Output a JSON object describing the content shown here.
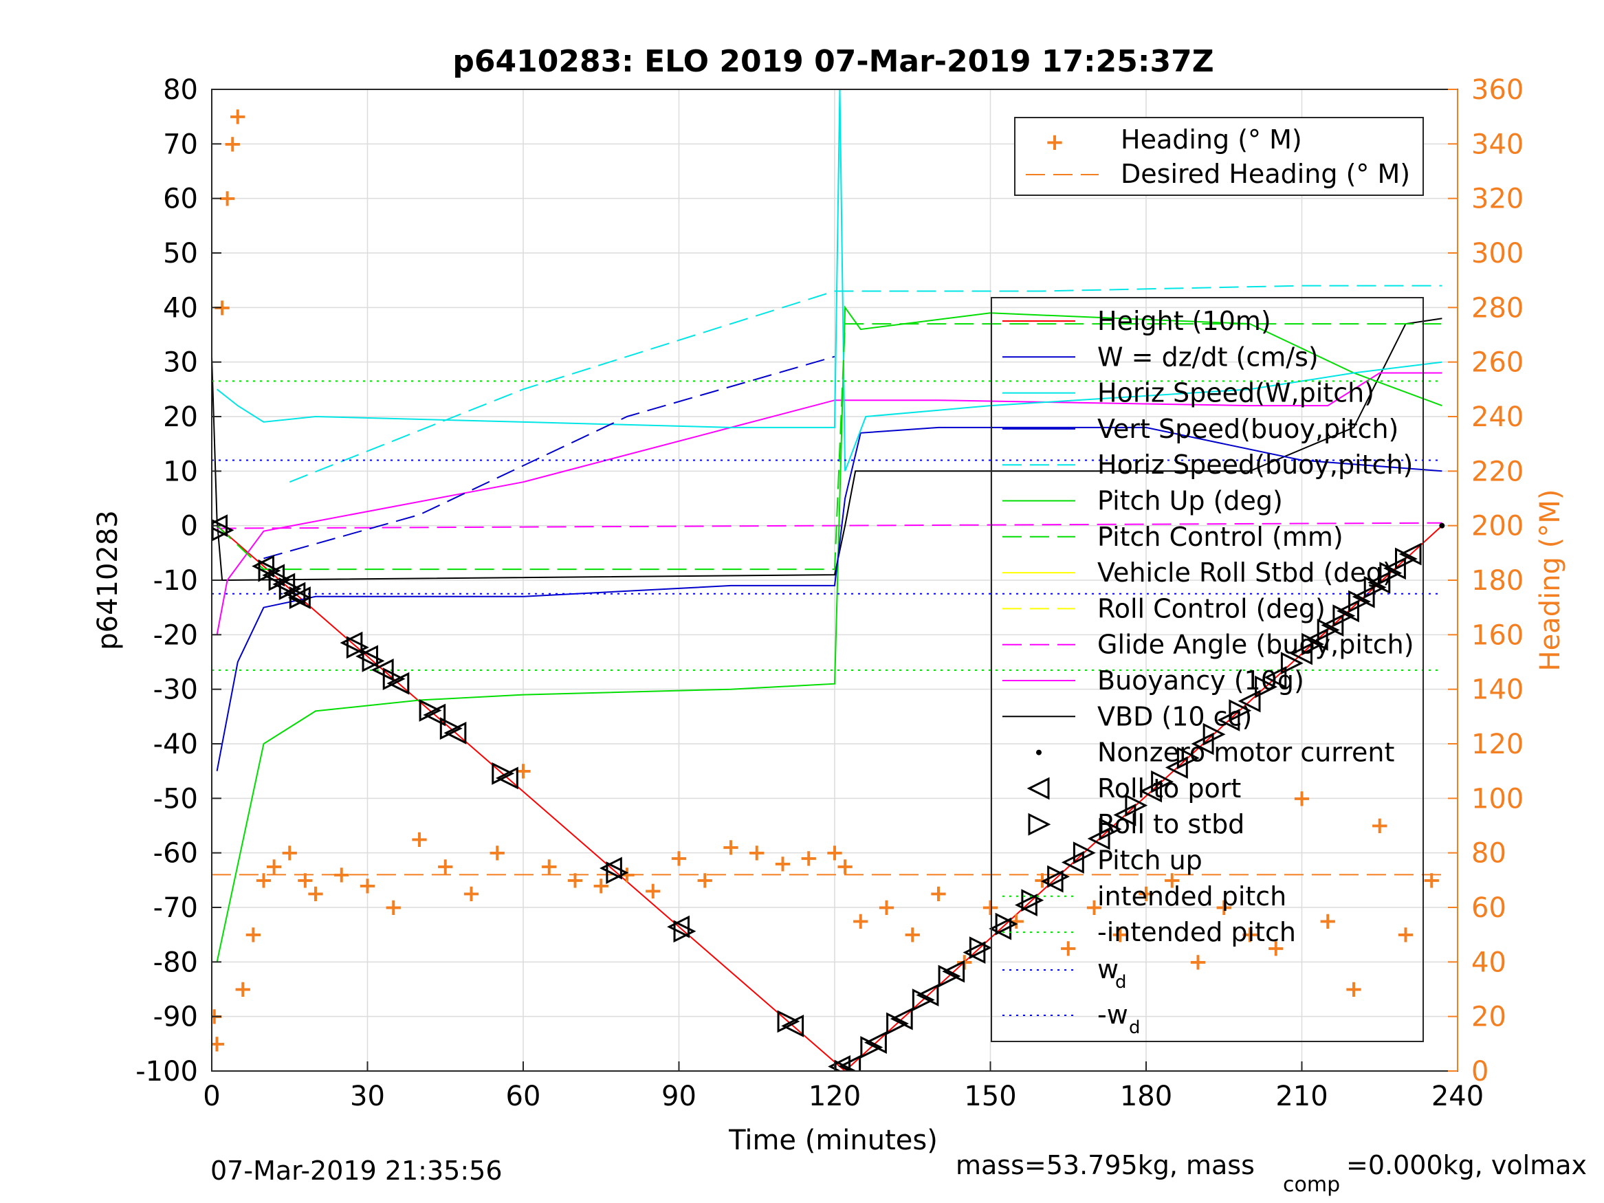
{
  "chart_data": {
    "type": "line",
    "title": "p6410283: ELO 2019 07-Mar-2019 17:25:37Z",
    "xlabel": "Time (minutes)",
    "ylabel": "p6410283",
    "y2label": "Heading (°M)",
    "xlim": [
      0,
      240
    ],
    "ylim": [
      -100,
      80
    ],
    "y2lim": [
      0,
      360
    ],
    "xticks": [
      "0",
      "30",
      "60",
      "90",
      "120",
      "150",
      "180",
      "210",
      "240"
    ],
    "yticks": [
      "-100",
      "-90",
      "-80",
      "-70",
      "-60",
      "-50",
      "-40",
      "-30",
      "-20",
      "-10",
      "0",
      "10",
      "20",
      "30",
      "40",
      "50",
      "60",
      "70",
      "80"
    ],
    "y2ticks": [
      "0",
      "20",
      "40",
      "60",
      "80",
      "100",
      "120",
      "140",
      "160",
      "180",
      "200",
      "220",
      "240",
      "260",
      "280",
      "300",
      "320",
      "340",
      "360"
    ],
    "grid": true,
    "legend_heading": [
      "Heading (° M)",
      "Desired Heading (° M)"
    ],
    "legend_main": [
      "Height (10m)",
      "W = dz/dt (cm/s)",
      "Horiz Speed(W,pitch)",
      "Vert Speed(buoy,pitch)",
      "Horiz Speed(buoy,pitch)",
      "Pitch Up (deg)",
      "Pitch Control (mm)",
      "Vehicle Roll Stbd (deg)",
      "Roll Control (deg)",
      "Glide Angle (buoy,pitch)",
      "Buoyancy (10g)",
      "VBD (10 cc)",
      "Nonzero motor current",
      "Roll to port",
      "Roll to stbd",
      "Pitch up",
      "intended pitch",
      "-intended pitch"
    ],
    "legend_wd": [
      "w",
      "d",
      "-w",
      "d"
    ],
    "footer_left": "07-Mar-2019 21:35:56",
    "footer_right": [
      "mass=53.795kg, mass",
      "comp",
      "=0.000kg, volmax"
    ],
    "colors": {
      "height": "#ff0000",
      "w": "#0000cc",
      "horiz_w": "#00e5e5",
      "vert_buoy": "#0000cc",
      "horiz_buoy": "#00e5e5",
      "pitch": "#00dd00",
      "pitch_control": "#00dd00",
      "roll": "#ffff00",
      "roll_control": "#ffff00",
      "glide": "#ff00ff",
      "buoyancy": "#ff00ff",
      "vbd": "#000000",
      "heading": "#f47f20",
      "wd": "#0000ff"
    },
    "series": [
      {
        "name": "Height (10m)",
        "x": [
          1,
          122,
          237
        ],
        "y": [
          0,
          -100,
          0
        ]
      },
      {
        "name": "Desired Heading (° M)",
        "axis": "right",
        "x": [
          0,
          237
        ],
        "y": [
          72,
          72
        ]
      },
      {
        "name": "VBD (10 cc)",
        "x": [
          0,
          1,
          2,
          120,
          122,
          124,
          200,
          220,
          230,
          237
        ],
        "y": [
          31,
          1,
          -10,
          -9,
          0,
          10,
          10,
          18,
          37,
          38
        ]
      },
      {
        "name": "Buoyancy (10g)",
        "x": [
          1,
          3,
          10,
          60,
          100,
          120,
          140,
          200,
          215,
          225,
          237
        ],
        "y": [
          -20,
          -10,
          -1,
          8,
          18,
          23,
          23,
          22,
          22,
          28,
          28
        ]
      },
      {
        "name": "Glide Angle (buoy,pitch)",
        "x": [
          1,
          237
        ],
        "y": [
          -0.5,
          0.5
        ]
      },
      {
        "name": "Pitch Up (deg)",
        "x": [
          1,
          10,
          20,
          40,
          60,
          100,
          120,
          122,
          125,
          150,
          200,
          220,
          237
        ],
        "y": [
          -80,
          -40,
          -34,
          -32,
          -31,
          -30,
          -29,
          40,
          36,
          39,
          37,
          28,
          22
        ]
      },
      {
        "name": "W = dz/dt (cm/s)",
        "x": [
          1,
          5,
          10,
          20,
          60,
          100,
          120,
          122,
          125,
          140,
          180,
          210,
          237
        ],
        "y": [
          -45,
          -25,
          -15,
          -13,
          -13,
          -11,
          -11,
          5,
          17,
          18,
          18,
          12,
          10
        ]
      },
      {
        "name": "Horiz Speed(W,pitch)",
        "x": [
          1,
          5,
          10,
          20,
          60,
          100,
          120,
          121,
          122,
          126,
          150,
          200,
          220,
          237
        ],
        "y": [
          25,
          22,
          19,
          20,
          19,
          18,
          18,
          80,
          10,
          20,
          22,
          25,
          28,
          30
        ]
      },
      {
        "name": "Pitch Control (mm)",
        "x": [
          1,
          10,
          120,
          122,
          237
        ],
        "y": [
          0,
          -8,
          -8,
          37,
          37
        ]
      },
      {
        "name": "Vert Speed(buoy,pitch)",
        "x": [
          10,
          40,
          80,
          120
        ],
        "y": [
          -6,
          2,
          20,
          31
        ]
      },
      {
        "name": "Horiz Speed(buoy,pitch)",
        "x": [
          15,
          60,
          120,
          160,
          210,
          237
        ],
        "y": [
          8,
          25,
          43,
          43,
          44,
          44
        ]
      },
      {
        "name": "intended pitch",
        "x": [
          0,
          237
        ],
        "y": [
          26.5,
          26.5
        ]
      },
      {
        "name": "-intended pitch",
        "x": [
          0,
          237
        ],
        "y": [
          -26.5,
          -26.5
        ]
      },
      {
        "name": "w_d",
        "x": [
          0,
          237
        ],
        "y": [
          12,
          12
        ]
      },
      {
        "name": "-w_d",
        "x": [
          0,
          237
        ],
        "y": [
          -12.5,
          -12.5
        ]
      },
      {
        "name": "Heading (° M)",
        "axis": "right",
        "x": [
          0.5,
          1,
          2,
          3,
          4,
          5,
          6,
          8,
          10,
          12,
          15,
          18,
          20,
          25,
          30,
          35,
          40,
          45,
          50,
          55,
          60,
          65,
          70,
          75,
          80,
          85,
          90,
          95,
          100,
          105,
          110,
          115,
          120,
          122,
          125,
          130,
          135,
          140,
          145,
          150,
          155,
          160,
          165,
          170,
          175,
          180,
          185,
          190,
          195,
          200,
          205,
          210,
          215,
          220,
          225,
          230,
          235
        ],
        "y": [
          20,
          10,
          280,
          320,
          340,
          350,
          30,
          50,
          70,
          75,
          80,
          70,
          65,
          72,
          68,
          60,
          85,
          75,
          65,
          80,
          110,
          75,
          70,
          68,
          72,
          66,
          78,
          70,
          82,
          80,
          76,
          78,
          80,
          75,
          55,
          60,
          50,
          65,
          40,
          60,
          55,
          70,
          45,
          60,
          50,
          65,
          70,
          40,
          60,
          50,
          45,
          100,
          55,
          30,
          90,
          50,
          70
        ]
      }
    ],
    "markers": {
      "roll_port_x": [
        1,
        10,
        12,
        14,
        16,
        17,
        27,
        30,
        33,
        36,
        43,
        47,
        57,
        77,
        90,
        112,
        121,
        123,
        128,
        133,
        138,
        143,
        147,
        152,
        157,
        162,
        166,
        171,
        176,
        181,
        186,
        191,
        196,
        200,
        205,
        210,
        213,
        216,
        219,
        222,
        225,
        228,
        231
      ],
      "roll_stbd_x": [
        2,
        11,
        13,
        15,
        17,
        28,
        31,
        35,
        42,
        46,
        56,
        78,
        91,
        111,
        122,
        127,
        132,
        137,
        142,
        148,
        153,
        158,
        163,
        168,
        173,
        178,
        183,
        188,
        193,
        198,
        203,
        208,
        212,
        215,
        218,
        221,
        224,
        227,
        230
      ]
    }
  }
}
